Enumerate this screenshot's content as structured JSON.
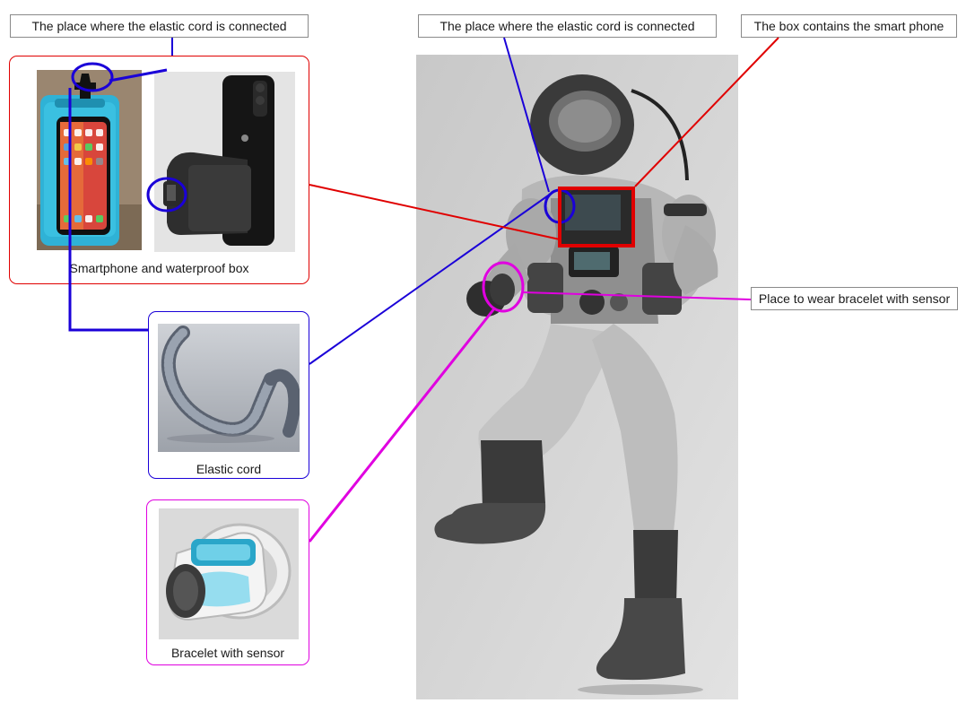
{
  "labels": {
    "cord_connection_left": "The place where the elastic cord is connected",
    "cord_connection_right": "The place where the elastic cord is connected",
    "box_contains_phone": "The box contains the smart phone",
    "wear_bracelet": "Place to wear bracelet with sensor"
  },
  "groups": {
    "smartphone_box": {
      "caption": "Smartphone and waterproof box"
    },
    "elastic_cord": {
      "caption": "Elastic cord"
    },
    "bracelet": {
      "caption": "Bracelet with sensor"
    }
  },
  "colors": {
    "smartphone_group": "#e00000",
    "cord_group": "#1a00d8",
    "bracelet_group": "#e000e0",
    "label_border": "#8a8a8a"
  },
  "icons": {
    "phone_case": "waterproof-phone-case-icon",
    "phone_holder": "phone-in-holder-icon",
    "cord": "coiled-elastic-cord-icon",
    "bracelet": "sensor-bracelet-icon",
    "diver": "diving-suit-figure-icon"
  }
}
